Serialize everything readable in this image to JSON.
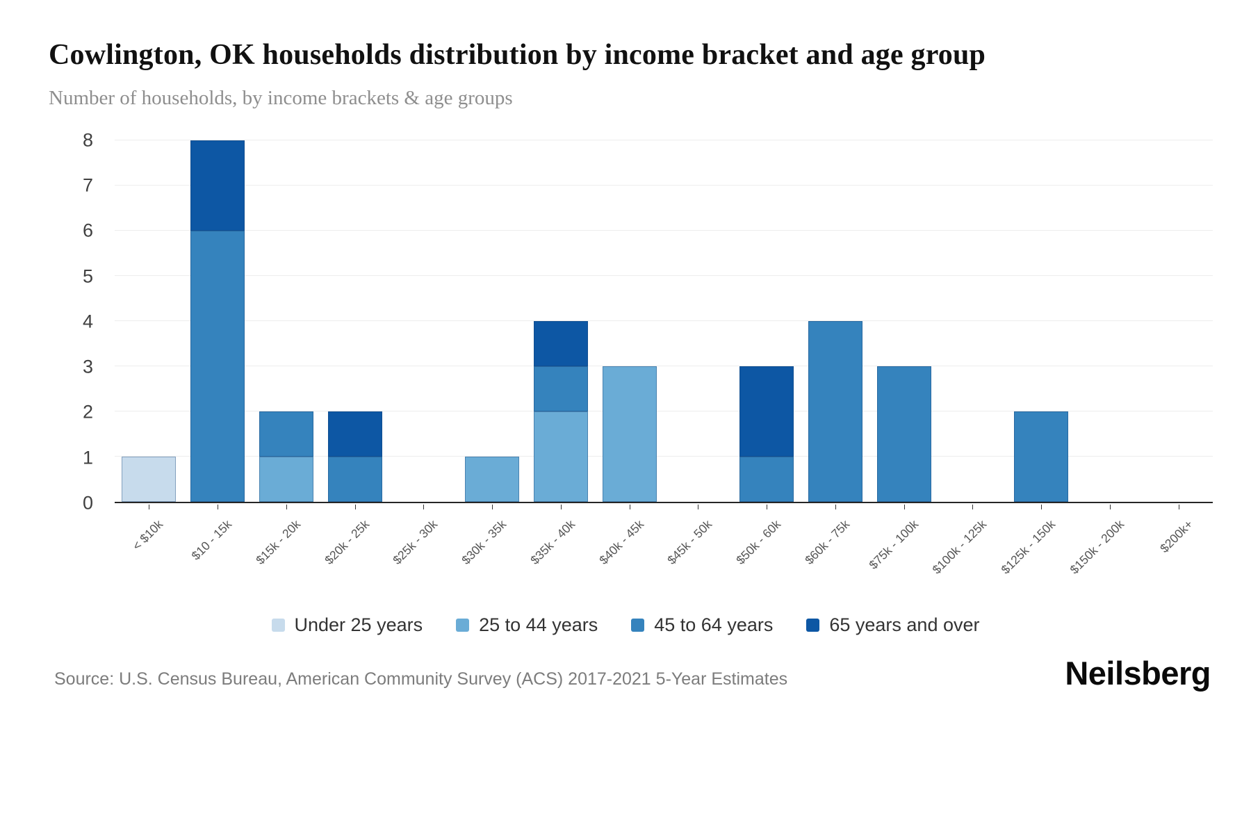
{
  "title": "Cowlington, OK households distribution by income bracket and age group",
  "subtitle": "Number of households, by income brackets & age groups",
  "source": "Source: U.S. Census Bureau, American Community Survey (ACS) 2017-2021 5-Year Estimates",
  "brand": "Neilsberg",
  "chart_data": {
    "type": "bar",
    "stacked": true,
    "title": "Cowlington, OK households distribution by income bracket and age group",
    "xlabel": "",
    "ylabel": "",
    "ylim": [
      0,
      8
    ],
    "yticks": [
      0,
      1,
      2,
      3,
      4,
      5,
      6,
      7,
      8
    ],
    "grid": "horizontal",
    "legend_position": "bottom",
    "axis_colors": {
      "gridline": "#ededed",
      "axis_line": "#262626"
    },
    "categories": [
      "< $10k",
      "$10 - 15k",
      "$15k - 20k",
      "$20k - 25k",
      "$25k - 30k",
      "$30k - 35k",
      "$35k - 40k",
      "$40k - 45k",
      "$45k - 50k",
      "$50k - 60k",
      "$60k - 75k",
      "$75k - 100k",
      "$100k - 125k",
      "$125k - 150k",
      "$150k - 200k",
      "$200k+"
    ],
    "series": [
      {
        "name": "Under 25 years",
        "color": "#c7dbec",
        "values": [
          1,
          0,
          0,
          0,
          0,
          0,
          0,
          0,
          0,
          0,
          0,
          0,
          0,
          0,
          0,
          0
        ]
      },
      {
        "name": "25 to 44 years",
        "color": "#6aacd6",
        "values": [
          0,
          0,
          1,
          0,
          0,
          1,
          2,
          3,
          0,
          0,
          0,
          0,
          0,
          0,
          0,
          0
        ]
      },
      {
        "name": "45 to 64 years",
        "color": "#3583bd",
        "values": [
          0,
          6,
          1,
          1,
          0,
          0,
          1,
          0,
          0,
          1,
          4,
          3,
          0,
          2,
          0,
          0
        ]
      },
      {
        "name": "65 years and over",
        "color": "#0d57a4",
        "values": [
          0,
          2,
          0,
          1,
          0,
          0,
          1,
          0,
          0,
          2,
          0,
          0,
          0,
          0,
          0,
          0
        ]
      }
    ]
  }
}
